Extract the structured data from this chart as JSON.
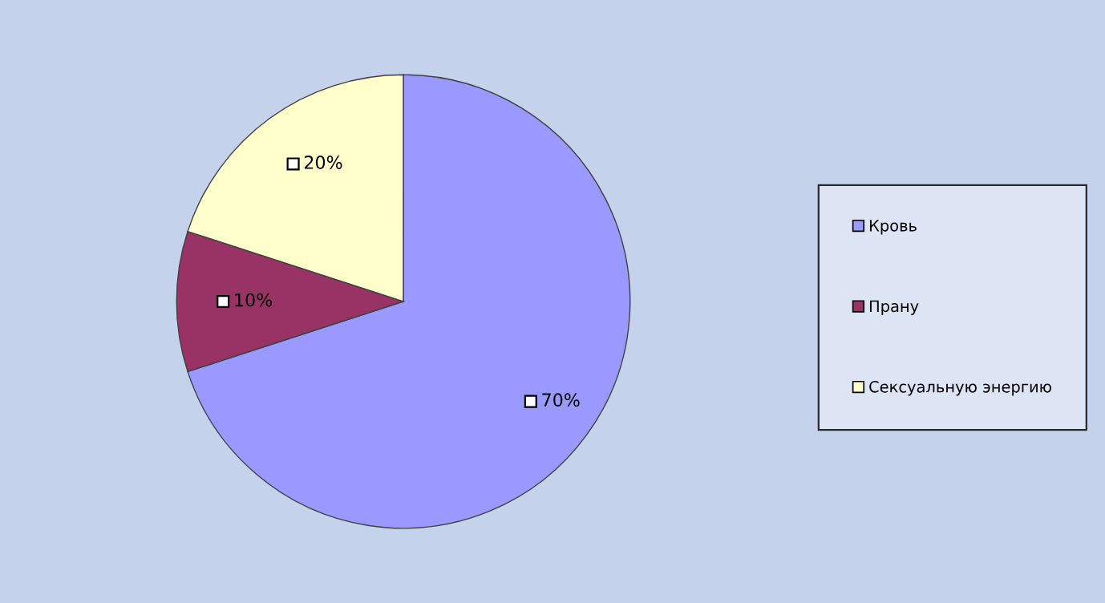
{
  "chart_data": {
    "type": "pie",
    "categories": [
      "Кровь",
      "Прану",
      "Сексуальную энергию"
    ],
    "values": [
      70,
      10,
      20
    ],
    "value_labels": [
      "70%",
      "10%",
      "20%"
    ],
    "colors": [
      "#9999ff",
      "#993366",
      "#ffffcc"
    ],
    "legend": "right"
  }
}
